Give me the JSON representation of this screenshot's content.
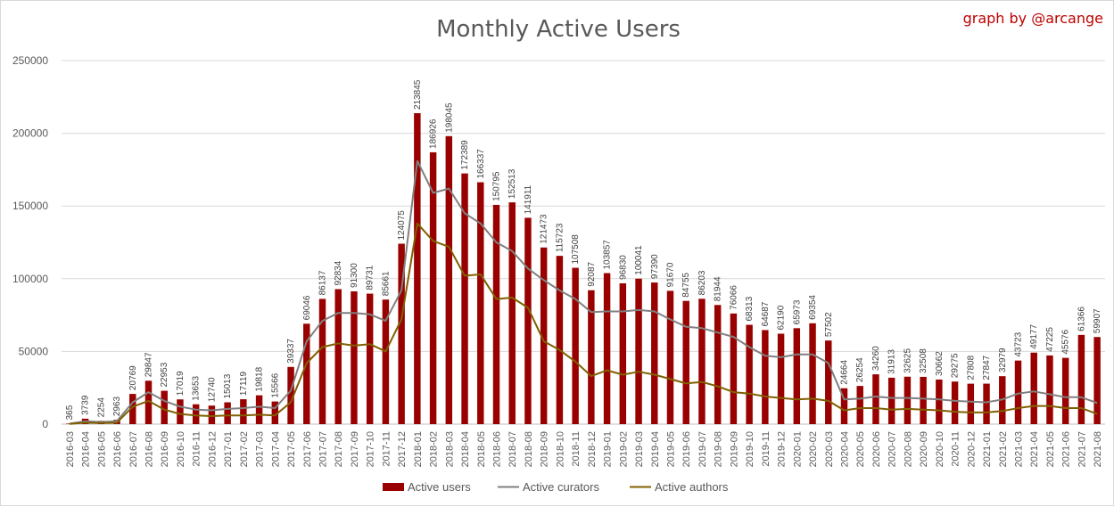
{
  "title": "Monthly Active Users",
  "credit": "graph by @arcange",
  "colors": {
    "bar": "#990000",
    "curators": "#808080",
    "authors": "#7f6000",
    "grid": "#d9d9d9",
    "text": "#595959",
    "credit": "#c00000"
  },
  "chart_data": {
    "type": "bar",
    "title": "Monthly Active Users",
    "xlabel": "",
    "ylabel": "",
    "ylim": [
      0,
      250000
    ],
    "yticks": [
      "0",
      "50000",
      "100000",
      "150000",
      "200000",
      "250000"
    ],
    "grid": true,
    "legend_position": "bottom",
    "categories": [
      "2016-03",
      "2016-04",
      "2016-05",
      "2016-06",
      "2016-07",
      "2016-08",
      "2016-09",
      "2016-10",
      "2016-11",
      "2016-12",
      "2017-01",
      "2017-02",
      "2017-03",
      "2017-04",
      "2017-05",
      "2017-06",
      "2017-07",
      "2017-08",
      "2017-09",
      "2017-10",
      "2017-11",
      "2017-12",
      "2018-01",
      "2018-02",
      "2018-03",
      "2018-04",
      "2018-05",
      "2018-06",
      "2018-07",
      "2018-08",
      "2018-09",
      "2018-10",
      "2018-11",
      "2018-12",
      "2019-01",
      "2019-02",
      "2019-03",
      "2019-04",
      "2019-05",
      "2019-06",
      "2019-07",
      "2019-08",
      "2019-09",
      "2019-10",
      "2019-11",
      "2019-12",
      "2020-01",
      "2020-02",
      "2020-03",
      "2020-04",
      "2020-05",
      "2020-06",
      "2020-07",
      "2020-08",
      "2020-09",
      "2020-10",
      "2020-11",
      "2020-12",
      "2021-01",
      "2021-02",
      "2021-03",
      "2021-04",
      "2021-05",
      "2021-06",
      "2021-07",
      "2021-08"
    ],
    "series": [
      {
        "name": "Active users",
        "kind": "bar",
        "values": [
          365,
          3739,
          2254,
          2963,
          20769,
          29847,
          22953,
          17019,
          13653,
          12740,
          15013,
          17119,
          19818,
          15566,
          39337,
          69046,
          86137,
          92834,
          91300,
          89731,
          85661,
          124075,
          213845,
          186926,
          198045,
          172389,
          166337,
          150795,
          152513,
          141911,
          121473,
          115723,
          107508,
          92087,
          103857,
          96830,
          100041,
          97390,
          91670,
          84755,
          86203,
          81944,
          76066,
          68313,
          64687,
          62190,
          65973,
          69354,
          57502,
          24664,
          26254,
          34260,
          31913,
          32625,
          32508,
          30662,
          29275,
          27808,
          27847,
          32979,
          43723,
          49177,
          47225,
          45576,
          61366,
          59907
        ]
      },
      {
        "name": "Active curators",
        "kind": "line",
        "values": [
          300,
          2000,
          1500,
          2000,
          15000,
          22000,
          16000,
          12000,
          10000,
          9500,
          10500,
          11000,
          12000,
          11000,
          23000,
          57000,
          71000,
          76500,
          76500,
          75500,
          71000,
          92000,
          181000,
          159000,
          162000,
          145000,
          138000,
          125000,
          119000,
          107000,
          99000,
          92000,
          86000,
          77000,
          77500,
          77500,
          78500,
          77500,
          72000,
          67000,
          66000,
          63000,
          60000,
          53000,
          47000,
          46000,
          48000,
          48000,
          42000,
          17000,
          17500,
          19000,
          18000,
          18000,
          17500,
          17000,
          16000,
          15500,
          15000,
          17000,
          21000,
          22500,
          20500,
          18500,
          18500,
          14500
        ]
      },
      {
        "name": "Active authors",
        "kind": "line",
        "values": [
          200,
          1000,
          800,
          1000,
          12000,
          16000,
          10000,
          7000,
          6000,
          5500,
          6000,
          6000,
          6500,
          6000,
          15000,
          42000,
          53000,
          55500,
          54000,
          55000,
          50000,
          72000,
          138000,
          126000,
          122000,
          102000,
          103000,
          86000,
          87000,
          80000,
          57000,
          51000,
          43000,
          33000,
          37000,
          34000,
          36000,
          34000,
          31000,
          28000,
          29000,
          26000,
          22000,
          21000,
          19000,
          18000,
          17000,
          17500,
          16000,
          9500,
          11000,
          11000,
          10000,
          10500,
          10000,
          9500,
          8500,
          8000,
          8000,
          9000,
          11000,
          12500,
          12500,
          11000,
          11000,
          7000
        ]
      }
    ]
  }
}
